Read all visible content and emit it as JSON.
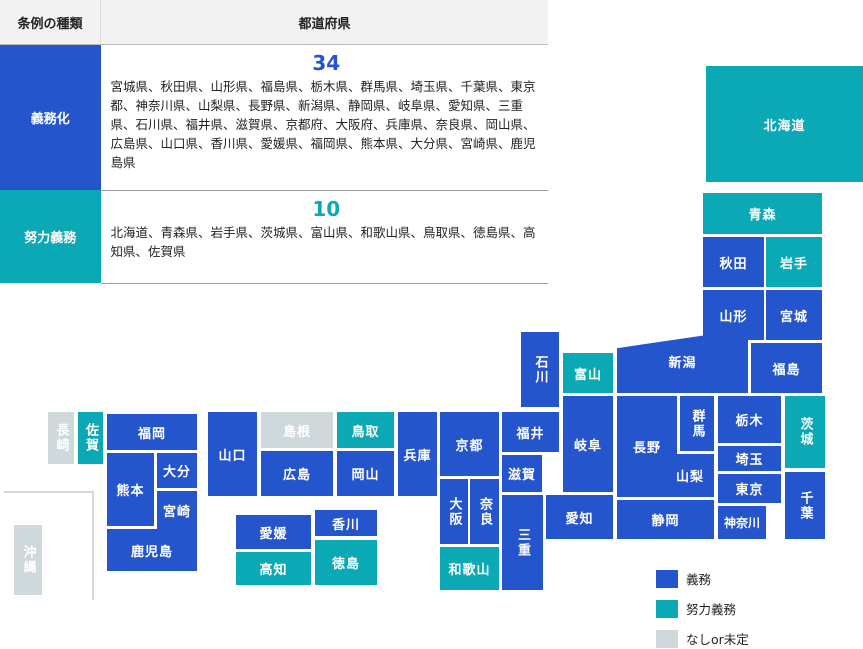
{
  "table": {
    "header": {
      "type": "条例の種類",
      "prefectures": "都道府県"
    },
    "rows": [
      {
        "type": "義務化",
        "count": "34",
        "list": "宮城県、秋田県、山形県、福島県、栃木県、群馬県、埼玉県、千葉県、東京都、神奈川県、山梨県、長野県、新潟県、静岡県、岐阜県、愛知県、三重県、石川県、福井県、滋賀県、京都府、大阪府、兵庫県、奈良県、岡山県、広島県、山口県、香川県、愛媛県、福岡県、熊本県、大分県、宮崎県、鹿児島県"
      },
      {
        "type": "努力義務",
        "count": "10",
        "list": "北海道、青森県、岩手県、茨城県、富山県、和歌山県、鳥取県、徳島県、高知県、佐賀県"
      }
    ]
  },
  "map": {
    "colors": {
      "mandatory": "#2455cc",
      "effort": "#0aa9b5",
      "none": "#cfd9dc"
    },
    "prefectures": {
      "hokkaido": {
        "name": "北海道",
        "status": "effort"
      },
      "aomori": {
        "name": "青森",
        "status": "effort"
      },
      "akita": {
        "name": "秋田",
        "status": "mandatory"
      },
      "iwate": {
        "name": "岩手",
        "status": "effort"
      },
      "yamagata": {
        "name": "山形",
        "status": "mandatory"
      },
      "miyagi": {
        "name": "宮城",
        "status": "mandatory"
      },
      "niigata": {
        "name": "新潟",
        "status": "mandatory"
      },
      "fukushima": {
        "name": "福島",
        "status": "mandatory"
      },
      "ishikawa": {
        "name": "石川",
        "status": "mandatory"
      },
      "toyama": {
        "name": "富山",
        "status": "effort"
      },
      "fukui": {
        "name": "福井",
        "status": "mandatory"
      },
      "gifu": {
        "name": "岐阜",
        "status": "mandatory"
      },
      "nagano": {
        "name": "長野",
        "status": "mandatory"
      },
      "gunma": {
        "name": "群馬",
        "status": "mandatory"
      },
      "tochigi": {
        "name": "栃木",
        "status": "mandatory"
      },
      "ibaraki": {
        "name": "茨城",
        "status": "effort"
      },
      "saitama": {
        "name": "埼玉",
        "status": "mandatory"
      },
      "yamanashi": {
        "name": "山梨",
        "status": "mandatory"
      },
      "tokyo": {
        "name": "東京",
        "status": "mandatory"
      },
      "chiba": {
        "name": "千葉",
        "status": "mandatory"
      },
      "kanagawa": {
        "name": "神奈川",
        "status": "mandatory"
      },
      "shizuoka": {
        "name": "静岡",
        "status": "mandatory"
      },
      "aichi": {
        "name": "愛知",
        "status": "mandatory"
      },
      "shiga": {
        "name": "滋賀",
        "status": "mandatory"
      },
      "kyoto": {
        "name": "京都",
        "status": "mandatory"
      },
      "mie": {
        "name": "三重",
        "status": "mandatory"
      },
      "osaka": {
        "name": "大阪",
        "status": "mandatory"
      },
      "nara": {
        "name": "奈良",
        "status": "mandatory"
      },
      "wakayama": {
        "name": "和歌山",
        "status": "effort"
      },
      "hyogo": {
        "name": "兵庫",
        "status": "mandatory"
      },
      "tottori": {
        "name": "鳥取",
        "status": "effort"
      },
      "shimane": {
        "name": "島根",
        "status": "none"
      },
      "okayama": {
        "name": "岡山",
        "status": "mandatory"
      },
      "hiroshima": {
        "name": "広島",
        "status": "mandatory"
      },
      "yamaguchi": {
        "name": "山口",
        "status": "mandatory"
      },
      "kagawa": {
        "name": "香川",
        "status": "mandatory"
      },
      "ehime": {
        "name": "愛媛",
        "status": "mandatory"
      },
      "tokushima": {
        "name": "徳島",
        "status": "effort"
      },
      "kochi": {
        "name": "高知",
        "status": "effort"
      },
      "fukuoka": {
        "name": "福岡",
        "status": "mandatory"
      },
      "saga": {
        "name": "佐賀",
        "status": "effort"
      },
      "nagasaki": {
        "name": "長崎",
        "status": "none"
      },
      "oita": {
        "name": "大分",
        "status": "mandatory"
      },
      "kumamoto": {
        "name": "熊本",
        "status": "mandatory"
      },
      "miyazaki": {
        "name": "宮崎",
        "status": "mandatory"
      },
      "kagoshima": {
        "name": "鹿児島",
        "status": "mandatory"
      },
      "okinawa": {
        "name": "沖縄",
        "status": "none"
      }
    }
  },
  "legend": {
    "mandatory": "義務",
    "effort": "努力義務",
    "none": "なしor未定"
  }
}
